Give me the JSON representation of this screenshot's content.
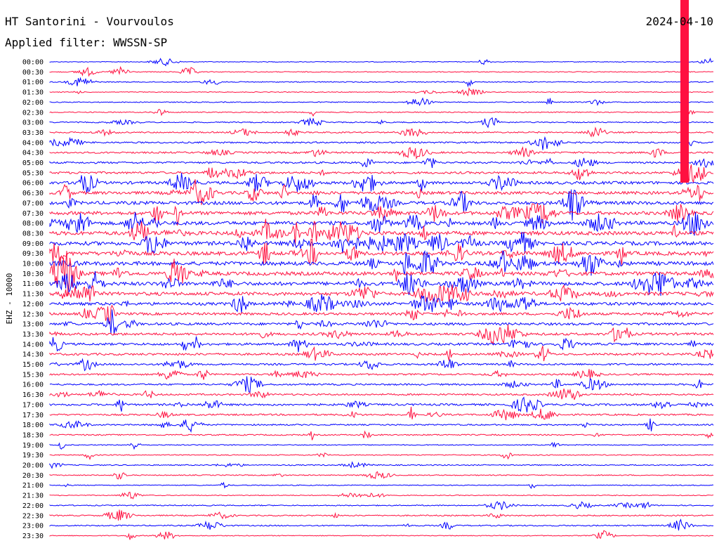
{
  "header": {
    "station": "HT Santorini - Vourvoulos",
    "date": "2024-04-10",
    "filter": "Applied filter: WWSSN-SP"
  },
  "chart_data": {
    "type": "line",
    "ylabel": "EHZ - 10000",
    "trace_colors": [
      "#0000ff",
      "#ff1040"
    ],
    "rows": [
      {
        "time": "00:00",
        "activity": 0.05
      },
      {
        "time": "00:30",
        "activity": 0.08
      },
      {
        "time": "01:00",
        "activity": 0.12
      },
      {
        "time": "01:30",
        "activity": 0.06
      },
      {
        "time": "02:00",
        "activity": 0.1
      },
      {
        "time": "02:30",
        "activity": 0.12
      },
      {
        "time": "03:00",
        "activity": 0.18
      },
      {
        "time": "03:30",
        "activity": 0.25
      },
      {
        "time": "04:00",
        "activity": 0.3
      },
      {
        "time": "04:30",
        "activity": 0.35
      },
      {
        "time": "05:00",
        "activity": 0.4
      },
      {
        "time": "05:30",
        "activity": 0.5
      },
      {
        "time": "06:00",
        "activity": 0.7
      },
      {
        "time": "06:30",
        "activity": 0.75
      },
      {
        "time": "07:00",
        "activity": 0.85
      },
      {
        "time": "07:30",
        "activity": 0.9
      },
      {
        "time": "08:00",
        "activity": 0.95
      },
      {
        "time": "08:30",
        "activity": 1.0
      },
      {
        "time": "09:00",
        "activity": 1.0
      },
      {
        "time": "09:30",
        "activity": 1.0
      },
      {
        "time": "10:00",
        "activity": 1.0
      },
      {
        "time": "10:30",
        "activity": 0.95
      },
      {
        "time": "11:00",
        "activity": 0.95
      },
      {
        "time": "11:30",
        "activity": 0.9
      },
      {
        "time": "12:00",
        "activity": 0.75
      },
      {
        "time": "12:30",
        "activity": 0.6
      },
      {
        "time": "13:00",
        "activity": 0.6
      },
      {
        "time": "13:30",
        "activity": 0.6
      },
      {
        "time": "14:00",
        "activity": 0.55
      },
      {
        "time": "14:30",
        "activity": 0.5
      },
      {
        "time": "15:00",
        "activity": 0.4
      },
      {
        "time": "15:30",
        "activity": 0.35
      },
      {
        "time": "16:00",
        "activity": 0.35
      },
      {
        "time": "16:30",
        "activity": 0.35
      },
      {
        "time": "17:00",
        "activity": 0.45
      },
      {
        "time": "17:30",
        "activity": 0.35
      },
      {
        "time": "18:00",
        "activity": 0.25
      },
      {
        "time": "18:30",
        "activity": 0.22
      },
      {
        "time": "19:00",
        "activity": 0.1
      },
      {
        "time": "19:30",
        "activity": 0.12
      },
      {
        "time": "20:00",
        "activity": 0.15
      },
      {
        "time": "20:30",
        "activity": 0.12
      },
      {
        "time": "21:00",
        "activity": 0.08
      },
      {
        "time": "21:30",
        "activity": 0.08
      },
      {
        "time": "22:00",
        "activity": 0.15
      },
      {
        "time": "22:30",
        "activity": 0.2
      },
      {
        "time": "23:00",
        "activity": 0.2
      },
      {
        "time": "23:30",
        "activity": 0.08
      }
    ]
  }
}
